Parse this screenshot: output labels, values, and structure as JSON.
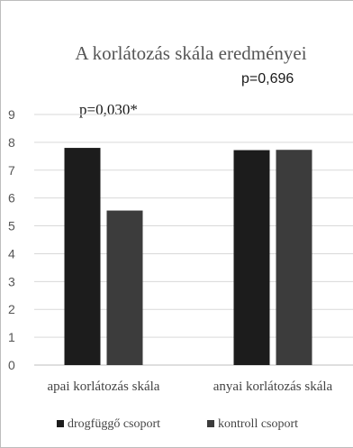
{
  "chart_data": {
    "type": "bar",
    "title": "A korlátozás skála eredményei",
    "categories": [
      "apai korlátozás skála",
      "anyai korlátozás skála"
    ],
    "series": [
      {
        "name": "drogfüggő csoport",
        "values": [
          7.8,
          7.72
        ],
        "color": "#1c1c1c"
      },
      {
        "name": "kontroll csoport",
        "values": [
          5.55,
          7.73
        ],
        "color": "#3c3c3c"
      }
    ],
    "annotations": [
      "p=0,030*",
      "p=0,696"
    ],
    "ylim": [
      0,
      9
    ],
    "yticks": [
      "0",
      "1",
      "2",
      "3",
      "4",
      "5",
      "6",
      "7",
      "8",
      "9"
    ],
    "grid": true,
    "legend": "bottom"
  }
}
